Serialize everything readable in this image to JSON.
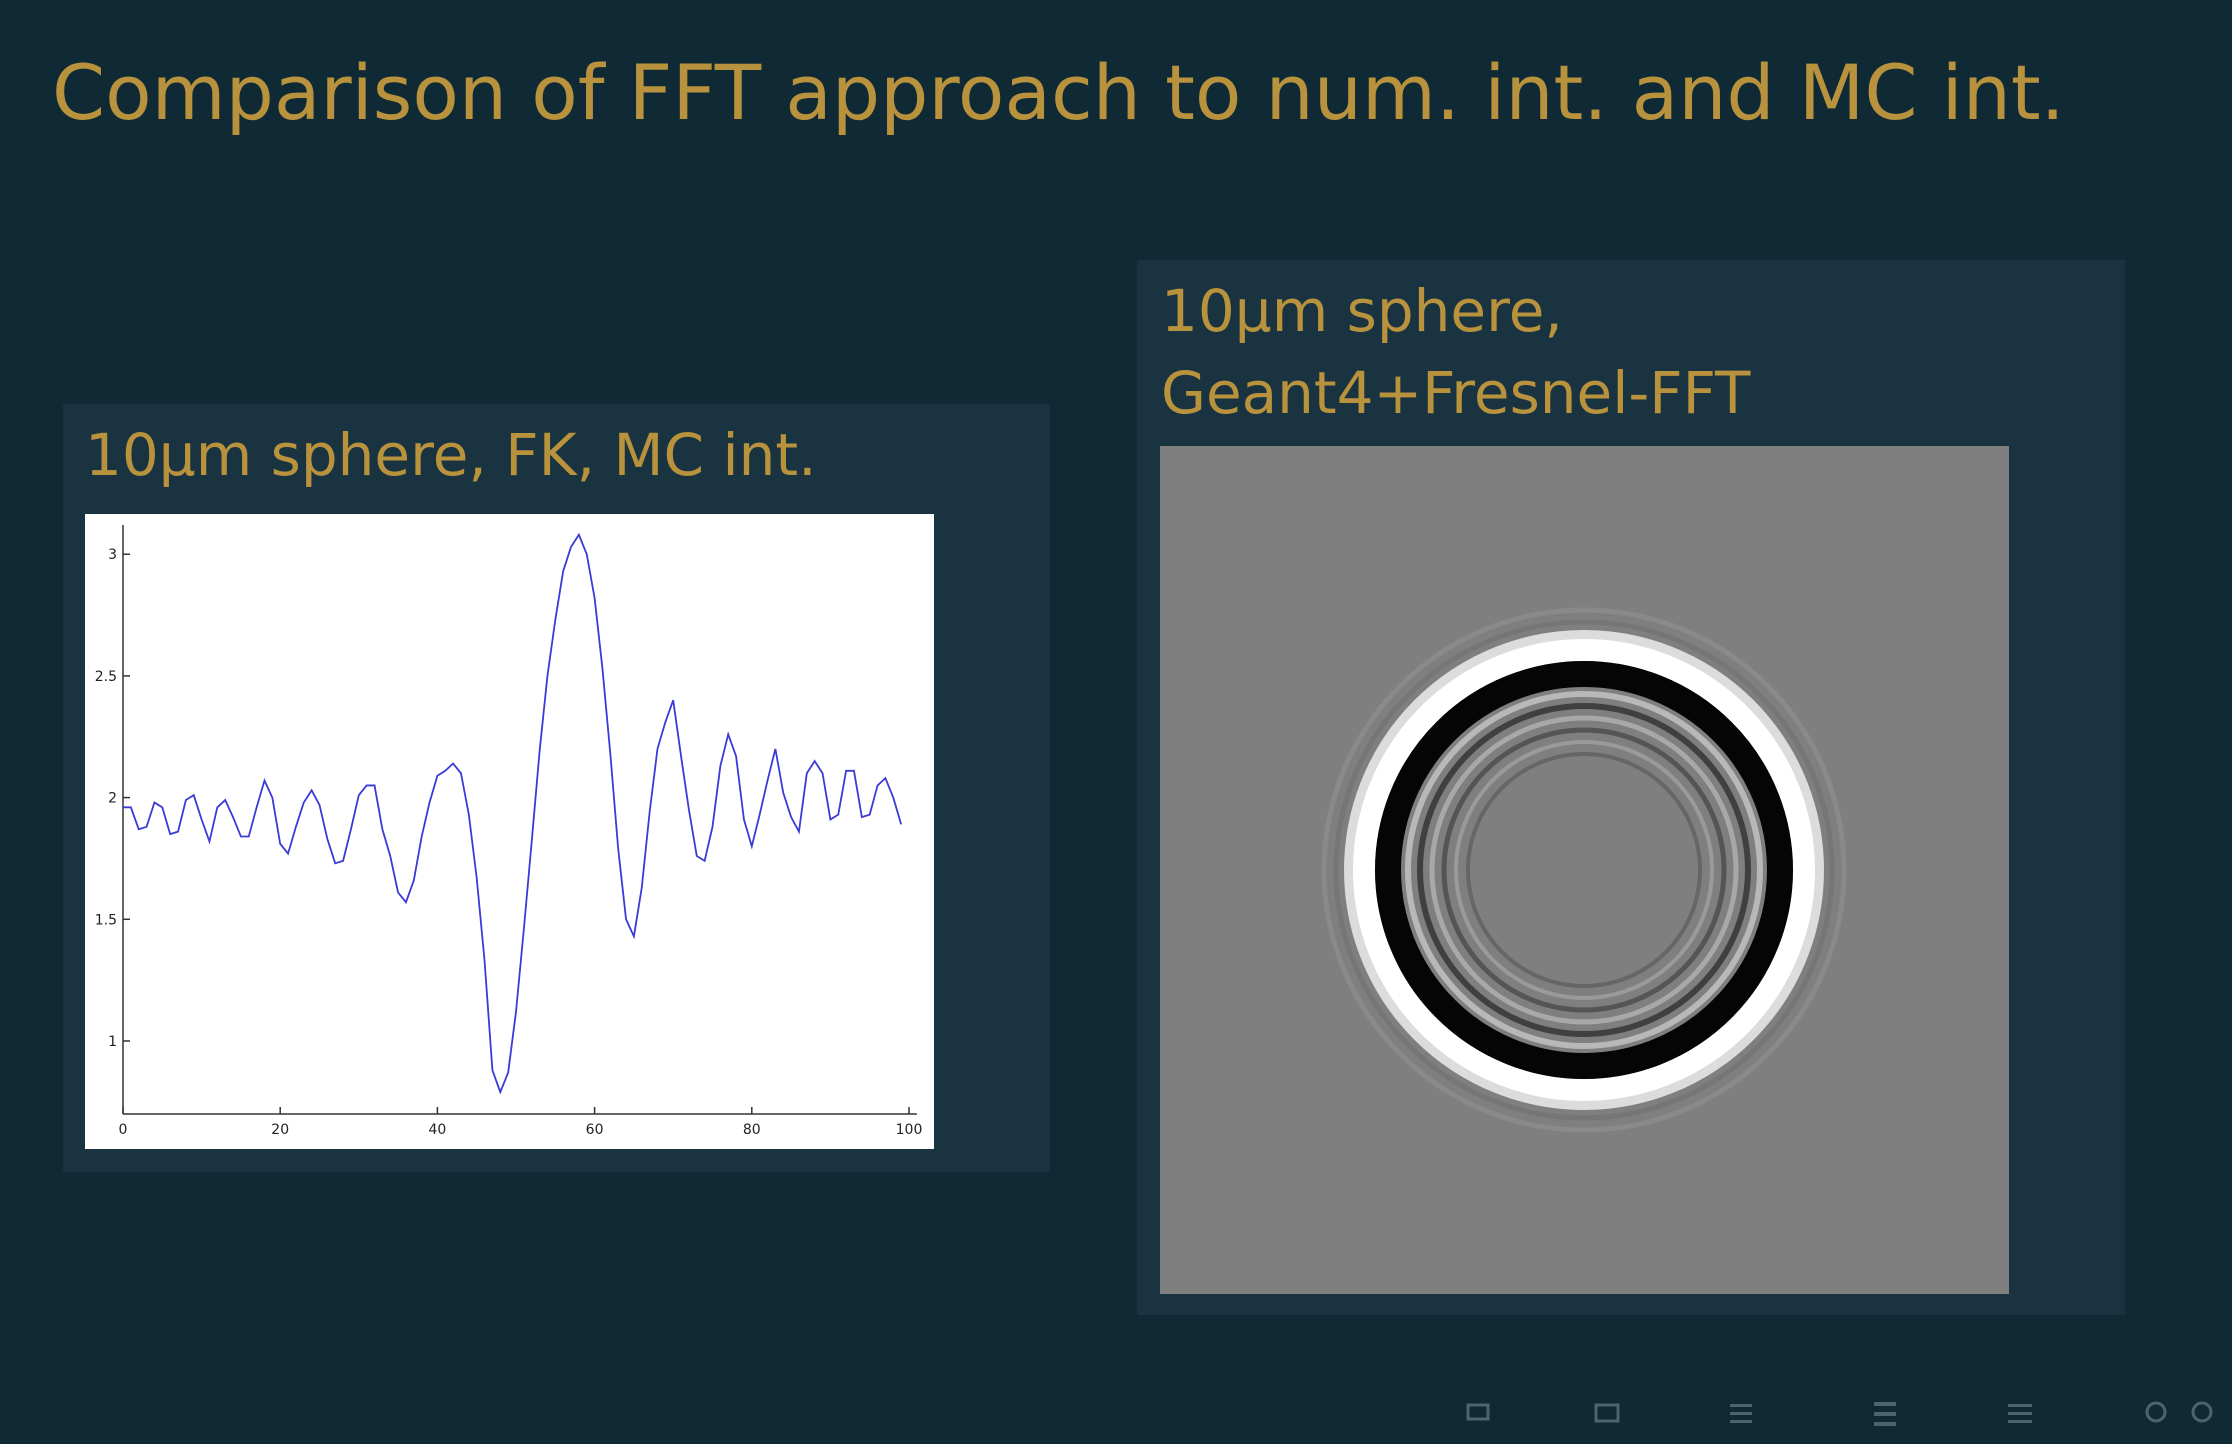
{
  "title": "Comparison of FFT approach to num. int. and MC int.",
  "blocks": [
    {
      "title": "10μm sphere, FK, MC int."
    },
    {
      "title_lines": [
        "10μm sphere,",
        "Geant4+Fresnel-FFT"
      ]
    }
  ],
  "chart_data": {
    "type": "line",
    "x": [
      0,
      1,
      2,
      3,
      4,
      5,
      6,
      7,
      8,
      9,
      10,
      11,
      12,
      13,
      14,
      15,
      16,
      17,
      18,
      19,
      20,
      21,
      22,
      23,
      24,
      25,
      26,
      27,
      28,
      29,
      30,
      31,
      32,
      33,
      34,
      35,
      36,
      37,
      38,
      39,
      40,
      41,
      42,
      43,
      44,
      45,
      46,
      47,
      48,
      49,
      50,
      51,
      52,
      53,
      54,
      55,
      56,
      57,
      58,
      59,
      60,
      61,
      62,
      63,
      64,
      65,
      66,
      67,
      68,
      69,
      70,
      71,
      72,
      73,
      74,
      75,
      76,
      77,
      78,
      79,
      80,
      81,
      82,
      83,
      84,
      85,
      86,
      87,
      88,
      89,
      90,
      91,
      92,
      93,
      94,
      95,
      96,
      97,
      98,
      99
    ],
    "series": [
      {
        "color": "#3a3ad8",
        "values": [
          1.96,
          1.96,
          1.87,
          1.88,
          1.98,
          1.96,
          1.85,
          1.86,
          1.99,
          2.01,
          1.91,
          1.82,
          1.96,
          1.99,
          1.92,
          1.84,
          1.84,
          1.96,
          2.07,
          2.0,
          1.81,
          1.77,
          1.88,
          1.98,
          2.03,
          1.97,
          1.83,
          1.73,
          1.74,
          1.87,
          2.01,
          2.05,
          2.05,
          1.87,
          1.76,
          1.61,
          1.57,
          1.66,
          1.84,
          1.98,
          2.09,
          2.11,
          2.14,
          2.1,
          1.93,
          1.67,
          1.33,
          0.88,
          0.79,
          0.87,
          1.12,
          1.46,
          1.82,
          2.19,
          2.5,
          2.73,
          2.93,
          3.03,
          3.08,
          3.0,
          2.82,
          2.53,
          2.18,
          1.79,
          1.5,
          1.43,
          1.63,
          1.94,
          2.2,
          2.31,
          2.4,
          2.17,
          1.95,
          1.76,
          1.74,
          1.88,
          2.13,
          2.26,
          2.17,
          1.91,
          1.8,
          1.93,
          2.07,
          2.2,
          2.02,
          1.92,
          1.86,
          2.1,
          2.15,
          2.1,
          1.91,
          1.93,
          2.11,
          2.11,
          1.92,
          1.93,
          2.05,
          2.08,
          2.0,
          1.89
        ]
      }
    ],
    "xlim": [
      0,
      101
    ],
    "ylim": [
      0.7,
      3.12
    ],
    "xticks": [
      0,
      20,
      40,
      60,
      80,
      100
    ],
    "yticks": [
      1,
      1.5,
      2,
      2.5,
      3
    ],
    "grid": false
  }
}
